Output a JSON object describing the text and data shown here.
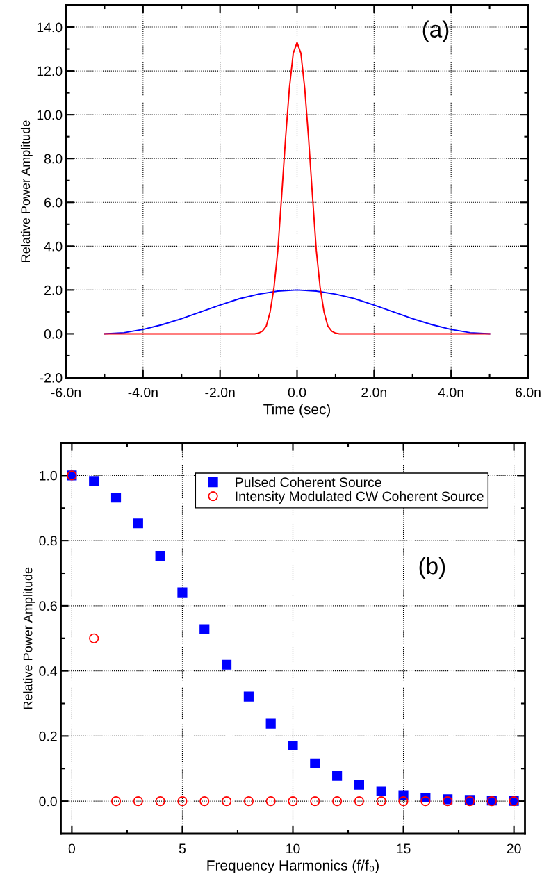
{
  "chart_data": [
    {
      "type": "line",
      "xlabel": "Time (sec)",
      "ylabel": "Relative Power Amplitude",
      "annotations": [
        "(a)"
      ],
      "xlim": [
        -6,
        6
      ],
      "ylim": [
        -2,
        15
      ],
      "xticks": [
        {
          "value": -6,
          "label": "-6.0n"
        },
        {
          "value": -4,
          "label": "-4.0n"
        },
        {
          "value": -2,
          "label": "-2.0n"
        },
        {
          "value": 0,
          "label": "0.0"
        },
        {
          "value": 2,
          "label": "2.0n"
        },
        {
          "value": 4,
          "label": "4.0n"
        },
        {
          "value": 6,
          "label": "6.0n"
        }
      ],
      "yticks": [
        {
          "value": -2,
          "label": "-2.0"
        },
        {
          "value": 0,
          "label": "0.0"
        },
        {
          "value": 2,
          "label": "2.0"
        },
        {
          "value": 4,
          "label": "4.0"
        },
        {
          "value": 6,
          "label": "6.0"
        },
        {
          "value": 8,
          "label": "8.0"
        },
        {
          "value": 10,
          "label": "10.0"
        },
        {
          "value": 12,
          "label": "12.0"
        },
        {
          "value": 14,
          "label": "14.0"
        }
      ],
      "grid": true,
      "legend": false,
      "marker": "none",
      "line_style": "solid",
      "series": [
        {
          "color": "#0000ff",
          "x": [
            -5,
            -4.5,
            -4,
            -3.5,
            -3,
            -2.5,
            -2,
            -1.5,
            -1,
            -0.5,
            0,
            0.5,
            1,
            1.5,
            2,
            2.5,
            3,
            3.5,
            4,
            4.5,
            5
          ],
          "values": [
            0,
            0.05,
            0.2,
            0.42,
            0.69,
            1.0,
            1.31,
            1.6,
            1.81,
            1.95,
            2.0,
            1.95,
            1.81,
            1.6,
            1.31,
            1.0,
            0.69,
            0.42,
            0.2,
            0.05,
            0
          ]
        },
        {
          "color": "#ff0000",
          "x": [
            -5,
            -1.1,
            -1,
            -0.9,
            -0.8,
            -0.7,
            -0.6,
            -0.5,
            -0.4,
            -0.3,
            -0.2,
            -0.1,
            0,
            0.1,
            0.2,
            0.3,
            0.4,
            0.5,
            0.6,
            0.7,
            0.8,
            0.9,
            1,
            1.1,
            5
          ],
          "values": [
            0,
            0,
            0.03,
            0.12,
            0.35,
            1.0,
            2.1,
            3.8,
            6.3,
            8.9,
            11.2,
            12.8,
            13.3,
            12.8,
            11.2,
            8.9,
            6.3,
            3.8,
            2.1,
            1.0,
            0.35,
            0.12,
            0.03,
            0,
            0
          ]
        }
      ]
    },
    {
      "type": "scatter",
      "xlabel": "Frequency Harmonics (f/f₀)",
      "ylabel": "Relative Power Amplitude",
      "annotations": [
        "(b)"
      ],
      "xlim": [
        -0.5,
        20.5
      ],
      "ylim": [
        -0.1,
        1.1
      ],
      "xticks": [
        0,
        5,
        10,
        15,
        20
      ],
      "yticks": [
        {
          "value": 0,
          "label": "0.0"
        },
        {
          "value": 0.2,
          "label": "0.2"
        },
        {
          "value": 0.4,
          "label": "0.4"
        },
        {
          "value": 0.6,
          "label": "0.6"
        },
        {
          "value": 0.8,
          "label": "0.8"
        },
        {
          "value": 1.0,
          "label": "1.0"
        }
      ],
      "grid": true,
      "legend": "top right",
      "x": [
        0,
        1,
        2,
        3,
        4,
        5,
        6,
        7,
        8,
        9,
        10,
        11,
        12,
        13,
        14,
        15,
        16,
        17,
        18,
        19,
        20
      ],
      "series": [
        {
          "name": "Pulsed Coherent Source",
          "color": "#0000ff",
          "marker": "square",
          "values": [
            1.0,
            0.983,
            0.932,
            0.853,
            0.753,
            0.641,
            0.528,
            0.419,
            0.321,
            0.238,
            0.171,
            0.116,
            0.078,
            0.05,
            0.031,
            0.018,
            0.011,
            0.006,
            0.004,
            0.002,
            0.001
          ]
        },
        {
          "name": "Intensity Modulated CW Coherent Source",
          "color": "#ff0000",
          "marker": "circle",
          "values": [
            1.0,
            0.5,
            0,
            0,
            0,
            0,
            0,
            0,
            0,
            0,
            0,
            0,
            0,
            0,
            0,
            0,
            0,
            0,
            0,
            0,
            0
          ]
        }
      ]
    }
  ]
}
